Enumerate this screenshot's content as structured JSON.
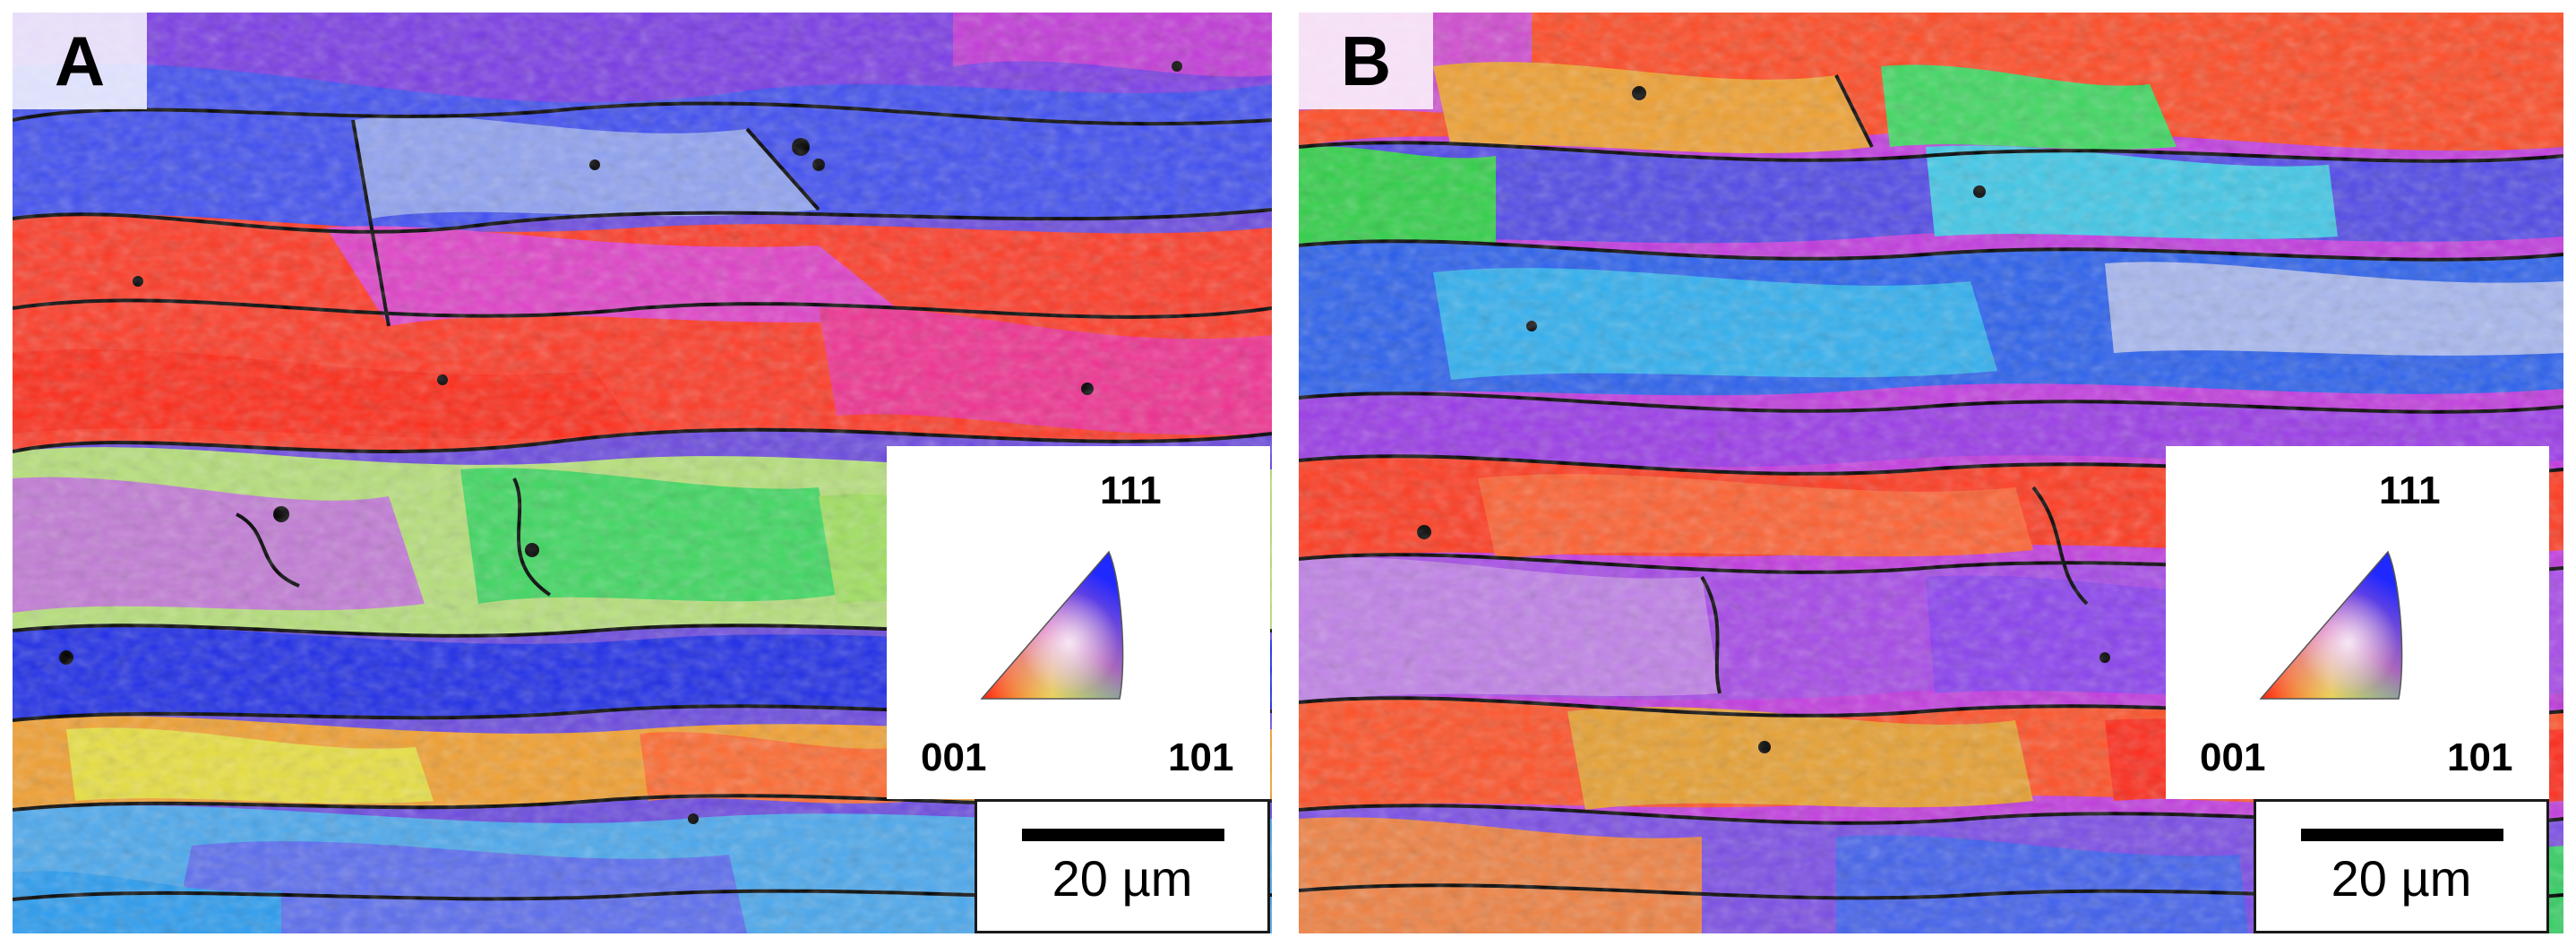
{
  "figure": {
    "panels": [
      {
        "label": "A",
        "legend": {
          "pole_111": "111",
          "pole_001": "001",
          "pole_101": "101"
        },
        "scale": {
          "text": "20 µm"
        }
      },
      {
        "label": "B",
        "legend": {
          "pole_111": "111",
          "pole_001": "001",
          "pole_101": "101"
        },
        "scale": {
          "text": "20 µm"
        }
      }
    ],
    "colors": {
      "red_001": "#ff2a1a",
      "green_101": "#22e03a",
      "blue_111": "#2a3cf0",
      "magenta": "#d83ae0",
      "grain_boundary": "#000000"
    },
    "icons": [
      "ipf-triangle-icon"
    ]
  }
}
